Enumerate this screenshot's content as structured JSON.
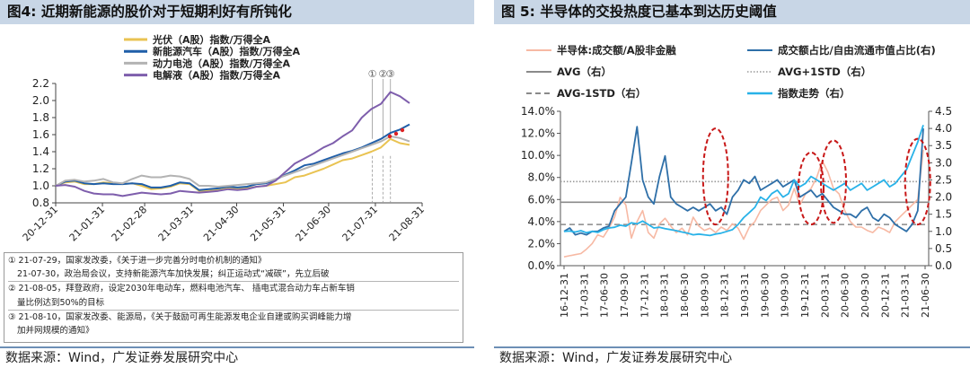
{
  "panel1": {
    "title": "图4:  近期新能源的股价对于短期利好有所钝化",
    "source": "数据来源：Wind，广发证券发展研究中心",
    "notes": [
      "① 21-07-29，国家发改委，《关于进一步完善分时电价机制的通知》",
      "21-07-30，政治局会议，支持新能源汽车加快发展；纠正运动式“减碳”，先立后破",
      "② 21-08-05，拜登政府，设定2030年电动车，燃料电池汽车、 插电式混合动力车占新车销",
      "量比例达到50%的目标",
      "③ 21-08-10，国家发改委、能源局，《关于鼓励可再生能源发电企业自建或购买调峰能力增",
      "加并网规模的通知》"
    ]
  },
  "panel2": {
    "title": "图 5:  半导体的交投热度已基本到达历史阈值",
    "source": "数据来源：Wind，广发证券发展研究中心"
  },
  "chart_data": [
    {
      "type": "line",
      "title": "近期新能源的股价对于短期利好有所钝化",
      "x_start": "2020-12-31",
      "x_end": "2021-08-31",
      "x_ticks": [
        "20-12-31",
        "21-01-31",
        "21-02-28",
        "21-03-31",
        "21-04-30",
        "21-05-31",
        "21-06-30",
        "21-07-31",
        "21-08-31"
      ],
      "ylim": [
        0.8,
        2.2
      ],
      "y_ticks": [
        "0.8",
        "1.0",
        "1.2",
        "1.4",
        "1.6",
        "1.8",
        "2.0",
        "2.2"
      ],
      "markers": [
        {
          "label": "①",
          "date": "2021-07-29"
        },
        {
          "label": "②",
          "date": "2021-08-05"
        },
        {
          "label": "③",
          "date": "2021-08-10"
        }
      ],
      "series": [
        {
          "name": "光伏（A股）指数/万得全A",
          "color": "#e9c352",
          "values": [
            1.0,
            1.04,
            1.05,
            1.02,
            1.02,
            1.04,
            1.03,
            1.02,
            1.03,
            1.0,
            0.96,
            0.97,
            0.99,
            1.03,
            1.02,
            0.94,
            0.94,
            0.95,
            0.97,
            0.96,
            0.97,
            0.99,
            1.0,
            1.02,
            1.04,
            1.1,
            1.12,
            1.16,
            1.2,
            1.25,
            1.3,
            1.32,
            1.36,
            1.4,
            1.45,
            1.55,
            1.5,
            1.48
          ]
        },
        {
          "name": "新能源汽车（A股）指数/万得全A",
          "color": "#1f5ea8",
          "values": [
            1.0,
            1.05,
            1.06,
            1.03,
            1.02,
            1.03,
            1.02,
            1.02,
            1.03,
            1.02,
            0.98,
            0.98,
            1.0,
            1.04,
            1.03,
            0.95,
            0.96,
            0.97,
            0.99,
            0.98,
            0.99,
            1.02,
            1.03,
            1.07,
            1.13,
            1.18,
            1.24,
            1.26,
            1.3,
            1.34,
            1.38,
            1.41,
            1.45,
            1.5,
            1.55,
            1.62,
            1.66,
            1.72
          ]
        },
        {
          "name": "动力电池（A股）指数/万得全A",
          "color": "#b3b3b3",
          "values": [
            1.0,
            1.06,
            1.07,
            1.05,
            1.06,
            1.08,
            1.04,
            1.03,
            1.08,
            1.12,
            1.1,
            1.1,
            1.12,
            1.11,
            1.08,
            1.0,
            1.0,
            0.99,
            1.0,
            1.01,
            1.02,
            1.03,
            1.04,
            1.08,
            1.12,
            1.16,
            1.2,
            1.24,
            1.28,
            1.32,
            1.36,
            1.4,
            1.44,
            1.48,
            1.52,
            1.58,
            1.56,
            1.52
          ]
        },
        {
          "name": "电解液（A股）指数/万得全A",
          "color": "#7e5eac",
          "values": [
            1.0,
            1.01,
            0.99,
            0.94,
            0.91,
            0.9,
            0.9,
            0.88,
            0.9,
            0.92,
            0.91,
            0.9,
            0.91,
            0.94,
            0.93,
            0.92,
            0.93,
            0.94,
            0.96,
            0.95,
            0.96,
            0.99,
            1.0,
            1.06,
            1.16,
            1.26,
            1.32,
            1.38,
            1.45,
            1.5,
            1.58,
            1.65,
            1.8,
            1.9,
            1.96,
            2.1,
            2.05,
            1.97
          ]
        }
      ]
    },
    {
      "type": "line",
      "title": "半导体的交投热度已基本到达历史阈值",
      "x_ticks": [
        "16-12-31",
        "17-03-31",
        "17-06-30",
        "17-09-30",
        "17-12-31",
        "18-03-31",
        "18-06-30",
        "18-09-30",
        "18-12-31",
        "19-03-31",
        "19-06-30",
        "19-09-30",
        "19-12-31",
        "20-03-31",
        "20-06-30",
        "20-09-30",
        "20-12-31",
        "21-03-31",
        "21-06-30"
      ],
      "ylim_left": [
        0.0,
        14.0
      ],
      "y_ticks_left": [
        "0.0%",
        "2.0%",
        "4.0%",
        "6.0%",
        "8.0%",
        "10.0%",
        "12.0%",
        "14.0%"
      ],
      "ylim_right": [
        0.0,
        4.5
      ],
      "y_ticks_right": [
        "0.0",
        "0.5",
        "1.0",
        "1.5",
        "2.0",
        "2.5",
        "3.0",
        "3.5",
        "4.0",
        "4.5"
      ],
      "legend": [
        "半导体:成交额/A股非金融",
        "成交额占比/自由流通市值占比(右)",
        "AVG（右）",
        "AVG+1STD（右）",
        "AVG-1STD（右）",
        "指数走势（右）"
      ],
      "series": [
        {
          "name": "半导体:成交额/A股非金融",
          "axis": "left",
          "color": "#f7b9a4",
          "values": [
            0.8,
            0.9,
            1.0,
            1.1,
            1.5,
            2.0,
            2.8,
            2.6,
            3.4,
            4.4,
            6.2,
            5.5,
            2.5,
            4.0,
            5.0,
            3.0,
            2.5,
            3.8,
            4.3,
            3.6,
            3.0,
            3.4,
            2.8,
            4.4,
            3.6,
            3.2,
            3.4,
            3.0,
            3.5,
            3.2,
            3.8,
            3.4,
            2.4,
            3.5,
            4.0,
            5.0,
            5.5,
            6.0,
            6.2,
            5.0,
            5.5,
            7.0,
            5.5,
            6.5,
            7.0,
            8.0,
            9.5,
            8.5,
            7.0,
            6.5,
            5.0,
            4.0,
            3.5,
            3.5,
            3.2,
            3.0,
            3.5,
            3.3,
            3.0,
            4.0,
            4.5,
            5.0,
            5.5,
            6.0,
            10.5
          ]
        },
        {
          "name": "成交额占比/自由流通市值占比(右)",
          "axis": "right",
          "color": "#2e6fa8",
          "values": [
            1.0,
            1.1,
            0.9,
            0.95,
            0.9,
            1.0,
            1.0,
            1.1,
            1.15,
            1.6,
            1.8,
            2.0,
            3.0,
            4.05,
            2.5,
            2.0,
            1.8,
            2.6,
            3.2,
            2.0,
            1.8,
            1.7,
            1.6,
            1.7,
            1.6,
            1.7,
            1.8,
            1.6,
            1.7,
            1.5,
            2.0,
            2.2,
            2.5,
            2.4,
            2.6,
            2.2,
            2.3,
            2.4,
            2.5,
            2.3,
            2.4,
            2.5,
            2.0,
            2.1,
            2.2,
            2.0,
            2.1,
            1.9,
            1.7,
            1.6,
            1.5,
            1.5,
            1.4,
            1.6,
            1.7,
            1.4,
            1.3,
            1.5,
            1.4,
            1.2,
            1.1,
            1.0,
            1.2,
            1.6,
            4.0
          ]
        },
        {
          "name": "AVG（右）",
          "axis": "right",
          "color": "#8a8a8a",
          "constant": 1.85
        },
        {
          "name": "AVG+1STD（右）",
          "axis": "right",
          "color": "#999999",
          "constant": 2.45
        },
        {
          "name": "AVG-1STD（右）",
          "axis": "right",
          "color": "#8a8a8a",
          "constant": 1.2
        },
        {
          "name": "指数走势（右）",
          "axis": "right",
          "color": "#28b2e8",
          "values": [
            1.0,
            1.01,
            0.98,
            1.02,
            0.96,
            1.0,
            0.97,
            1.05,
            1.1,
            1.12,
            1.18,
            1.15,
            1.25,
            1.22,
            1.3,
            1.2,
            1.1,
            1.12,
            1.08,
            1.05,
            1.02,
            0.98,
            0.95,
            0.9,
            0.92,
            0.9,
            0.88,
            0.92,
            0.95,
            1.0,
            1.05,
            1.2,
            1.4,
            1.55,
            1.7,
            2.0,
            1.9,
            2.1,
            2.2,
            2.0,
            2.1,
            2.5,
            2.3,
            2.4,
            2.6,
            2.5,
            2.4,
            2.3,
            2.2,
            2.3,
            2.4,
            2.2,
            2.3,
            2.4,
            2.2,
            2.3,
            2.4,
            2.5,
            2.3,
            2.4,
            2.6,
            2.8,
            3.2,
            3.6,
            4.1
          ]
        }
      ],
      "highlight_ovals": [
        {
          "x_index": 27,
          "y_center": 2.6,
          "half_height": 1.4
        },
        {
          "x_index": 44,
          "y_center": 2.25,
          "half_height": 1.05
        },
        {
          "x_index": 48,
          "y_center": 2.45,
          "half_height": 1.2
        },
        {
          "x_index": 63,
          "y_center": 2.45,
          "half_height": 1.25
        }
      ]
    }
  ]
}
